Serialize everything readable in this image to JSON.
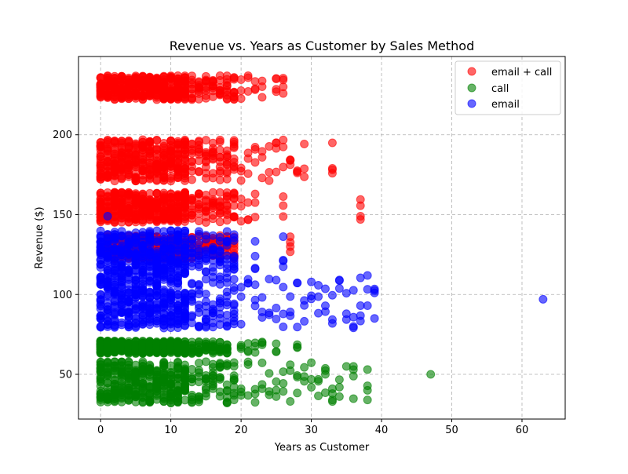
{
  "chart_data": {
    "type": "scatter",
    "title": "Revenue vs. Years as Customer by Sales Method",
    "xlabel": "Years as Customer",
    "ylabel": "Revenue ($)",
    "xlim": [
      -3.15,
      66.15
    ],
    "ylim": [
      22,
      249
    ],
    "xticks": [
      0,
      10,
      20,
      30,
      40,
      50,
      60
    ],
    "yticks": [
      50,
      100,
      150,
      200
    ],
    "grid": true,
    "legend_position": "top-right",
    "series": [
      {
        "name": "email + call",
        "color": "#ff0000",
        "clusters": [
          {
            "xs": [
              0,
              1,
              2,
              3,
              4,
              5,
              6,
              7,
              8,
              9,
              10,
              11,
              12,
              13,
              14,
              15,
              16,
              17,
              18,
              19,
              20,
              21,
              22,
              23,
              25,
              26
            ],
            "y": [
              222,
              237
            ]
          },
          {
            "xs": [
              0,
              1,
              2,
              3,
              4,
              5,
              6,
              7,
              8,
              9,
              10,
              11,
              12,
              13,
              14,
              15,
              16,
              17,
              18,
              19,
              20,
              21,
              22,
              23,
              24,
              25,
              26,
              27,
              28,
              29,
              33
            ],
            "y": [
              171,
              197
            ]
          },
          {
            "xs": [
              0,
              1,
              2,
              3,
              4,
              5,
              6,
              7,
              8,
              9,
              10,
              11,
              12,
              13,
              14,
              15,
              16,
              17,
              18,
              19,
              20,
              21,
              22,
              26,
              37
            ],
            "y": [
              145,
              164
            ]
          },
          {
            "xs": [
              1,
              2,
              3,
              4,
              5,
              6,
              7,
              8,
              9,
              10,
              11,
              12,
              13,
              14,
              15,
              16,
              17,
              18,
              19,
              27
            ],
            "y": [
              122,
              137
            ]
          }
        ],
        "outliers": [
          [
            26,
            230
          ],
          [
            25,
            227
          ],
          [
            33,
            179
          ],
          [
            37,
            147
          ],
          [
            27,
            130
          ],
          [
            25,
            195
          ],
          [
            27,
            184
          ]
        ]
      },
      {
        "name": "call",
        "color": "#008000",
        "clusters": [
          {
            "xs": [
              0,
              1,
              2,
              3,
              4,
              5,
              6,
              7,
              8,
              9,
              10,
              11,
              12,
              13,
              14,
              15,
              16,
              17,
              18,
              19,
              20,
              21,
              22,
              23,
              24,
              25,
              26,
              27,
              28,
              29,
              30,
              31,
              32,
              33,
              34,
              36,
              38
            ],
            "y": [
              32,
              58
            ]
          },
          {
            "xs": [
              0,
              1,
              2,
              3,
              4,
              5,
              6,
              7,
              8,
              9,
              10,
              11,
              12,
              13,
              14,
              15,
              16,
              17,
              18,
              20,
              21,
              22,
              23,
              25,
              28
            ],
            "y": [
              63,
              71
            ]
          }
        ],
        "outliers": [
          [
            47,
            50
          ],
          [
            36,
            55
          ],
          [
            35,
            55
          ],
          [
            32,
            50
          ],
          [
            33,
            33
          ],
          [
            38,
            40
          ]
        ]
      },
      {
        "name": "email",
        "color": "#0000ff",
        "clusters": [
          {
            "xs": [
              0,
              1,
              2,
              3,
              4,
              5,
              6,
              7,
              8,
              9,
              10,
              11,
              12,
              13,
              14,
              15,
              16,
              17,
              18,
              19,
              20,
              21,
              22,
              23,
              24,
              25,
              26,
              27,
              28,
              29,
              30,
              31,
              32,
              33,
              34,
              35,
              36,
              37,
              38,
              39
            ],
            "y": [
              79,
              112
            ]
          },
          {
            "xs": [
              0,
              1,
              2,
              3,
              4,
              5,
              6,
              7,
              8,
              9,
              10,
              11,
              12,
              13,
              14,
              15,
              16,
              17,
              18,
              19,
              22,
              26
            ],
            "y": [
              113,
              140
            ]
          }
        ],
        "outliers": [
          [
            63,
            97
          ],
          [
            1,
            149
          ],
          [
            39,
            101
          ],
          [
            36,
            80
          ],
          [
            37,
            93
          ],
          [
            22,
            124
          ],
          [
            26,
            121
          ]
        ]
      }
    ]
  }
}
